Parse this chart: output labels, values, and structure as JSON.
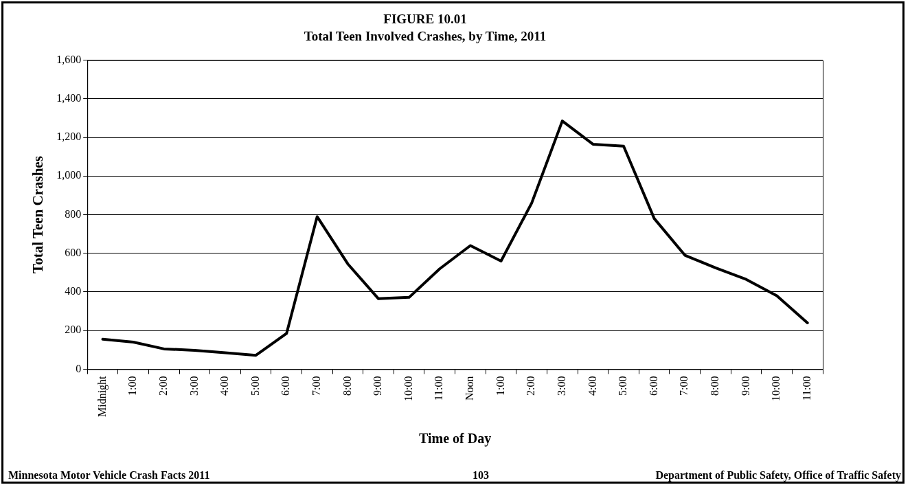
{
  "chart_data": {
    "type": "line",
    "title": "FIGURE 10.01",
    "subtitle": "Total Teen Involved Crashes, by Time, 2011",
    "xlabel": "Time of Day",
    "ylabel": "Total Teen Crashes",
    "categories": [
      "Midnight",
      "1:00",
      "2:00",
      "3:00",
      "4:00",
      "5:00",
      "6:00",
      "7:00",
      "8:00",
      "9:00",
      "10:00",
      "11:00",
      "Noon",
      "1:00",
      "2:00",
      "3:00",
      "4:00",
      "5:00",
      "6:00",
      "7:00",
      "8:00",
      "9:00",
      "10:00",
      "11:00"
    ],
    "series": [
      {
        "color": "#000000",
        "values": [
          155,
          140,
          105,
          98,
          85,
          72,
          185,
          790,
          545,
          365,
          372,
          520,
          640,
          560,
          860,
          1285,
          1165,
          1155,
          780,
          590,
          525,
          465,
          380,
          240
        ]
      }
    ],
    "ylim": [
      0,
      1600
    ],
    "yticks": [
      {
        "value": 0,
        "label": "0"
      },
      {
        "value": 200,
        "label": "200"
      },
      {
        "value": 400,
        "label": "400"
      },
      {
        "value": 600,
        "label": "600"
      },
      {
        "value": 800,
        "label": "800"
      },
      {
        "value": 1000,
        "label": "1,000"
      },
      {
        "value": 1200,
        "label": "1,200"
      },
      {
        "value": 1400,
        "label": "1,400"
      },
      {
        "value": 1600,
        "label": "1,600"
      }
    ],
    "grid": "y",
    "legend": false,
    "marker": "none",
    "line_style": "solid",
    "annotations": [
      "Minnesota Motor Vehicle Crash Facts 2011",
      "103",
      "Department of Public Safety, Office of Traffic Safety"
    ]
  }
}
